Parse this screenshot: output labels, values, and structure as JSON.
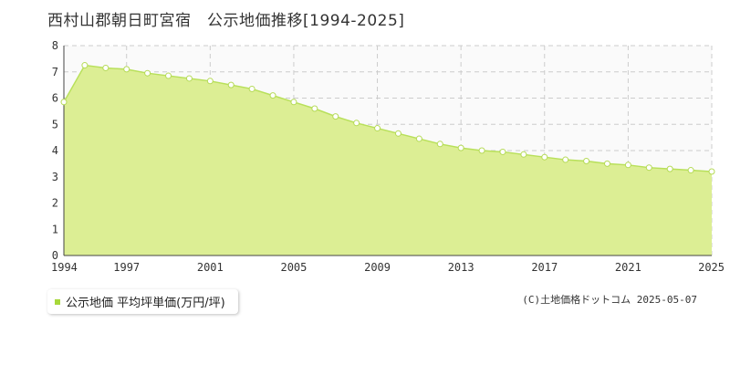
{
  "chart_data": {
    "type": "area",
    "title": "西村山郡朝日町宮宿　公示地価推移[1994-2025]",
    "xlabel": "",
    "ylabel": "",
    "x": [
      1994,
      1995,
      1996,
      1997,
      1998,
      1999,
      2000,
      2001,
      2002,
      2003,
      2004,
      2005,
      2006,
      2007,
      2008,
      2009,
      2010,
      2011,
      2012,
      2013,
      2014,
      2015,
      2016,
      2017,
      2018,
      2019,
      2020,
      2021,
      2022,
      2023,
      2024,
      2025
    ],
    "series": [
      {
        "name": "公示地価 平均坪単価(万円/坪)",
        "values": [
          5.85,
          7.25,
          7.15,
          7.1,
          6.95,
          6.85,
          6.75,
          6.65,
          6.5,
          6.35,
          6.1,
          5.85,
          5.6,
          5.3,
          5.05,
          4.85,
          4.65,
          4.45,
          4.25,
          4.1,
          4.0,
          3.95,
          3.85,
          3.75,
          3.65,
          3.6,
          3.5,
          3.45,
          3.35,
          3.3,
          3.25,
          3.2
        ]
      }
    ],
    "x_ticks": [
      "1994",
      "1997",
      "2001",
      "2005",
      "2009",
      "2013",
      "2017",
      "2021",
      "2025"
    ],
    "y_ticks": [
      "0",
      "1",
      "2",
      "3",
      "4",
      "5",
      "6",
      "7",
      "8"
    ],
    "xlim": [
      1994,
      2025
    ],
    "ylim": [
      0,
      8
    ],
    "grid": true,
    "legend_position": "bottom-left"
  },
  "legend": {
    "label": "公示地価 平均坪単価(万円/坪)"
  },
  "credit": "(C)土地価格ドットコム 2025-05-07",
  "colors": {
    "fill": "#dcee94",
    "line": "#b8e05a",
    "marker_fill": "#ffffff",
    "marker_stroke": "#b5da57",
    "grid": "#cccccc",
    "axis": "#444444",
    "plot_background": "#fafafa",
    "legend_swatch": "#a7d83a"
  }
}
